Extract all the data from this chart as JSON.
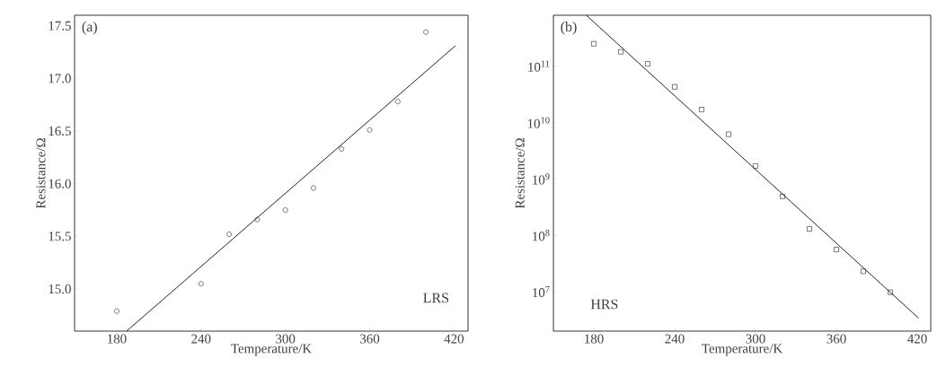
{
  "chart_data": [
    {
      "type": "scatter",
      "xlabel": "Temperature/K",
      "ylabel": "Resistance/Ω",
      "annotations": [
        "(a)",
        "LRS"
      ],
      "xlim": [
        150,
        430
      ],
      "ylim": [
        14.6,
        17.6
      ],
      "xticks": [
        180,
        240,
        300,
        360,
        420
      ],
      "yticks": [
        {
          "value": 15,
          "label": "15.0"
        },
        15.5,
        {
          "value": 16,
          "label": "16.0"
        },
        16.5,
        {
          "value": 17,
          "label": "17.0"
        },
        17.5
      ],
      "series": [
        {
          "color": "#222222",
          "marker": "circle",
          "x": [
            180,
            240,
            260,
            280,
            300,
            320,
            340,
            360,
            380,
            400
          ],
          "values": [
            14.79,
            15.05,
            15.52,
            15.66,
            15.75,
            15.96,
            16.33,
            16.51,
            16.78,
            17.44
          ]
        },
        {
          "type": "line",
          "color": "#222222",
          "line_style": "solid",
          "x": [
            187,
            421
          ],
          "values": [
            14.6,
            17.31
          ]
        }
      ]
    },
    {
      "type": "scatter",
      "xlabel": "Temperature/K",
      "ylabel": "Resistance/Ω",
      "annotations": [
        "(b)",
        "HRS"
      ],
      "log": true,
      "xlim": [
        150,
        430
      ],
      "ylim": [
        2000000,
        800000000000
      ],
      "xticks": [
        180,
        240,
        300,
        360,
        420
      ],
      "yticks": [
        {
          "value": 10000000,
          "label": "10$^{7}$"
        },
        {
          "value": 100000000,
          "label": "10$^{8}$"
        },
        {
          "value": 1000000000,
          "label": "10$^{9}$"
        },
        {
          "value": 10000000000,
          "label": "10$^{10}$"
        },
        {
          "value": 100000000000,
          "label": "10$^{11}$"
        }
      ],
      "series": [
        {
          "color": "#222222",
          "marker": "square",
          "x": [
            180,
            200,
            220,
            240,
            260,
            280,
            300,
            320,
            340,
            360,
            380,
            400
          ],
          "values": [
            250000000000,
            180000000000,
            110000000000,
            43000000000,
            17000000000,
            6200000000,
            1700000000,
            490000000,
            130000000,
            56000000,
            23000000,
            9800000
          ]
        },
        {
          "type": "line",
          "color": "#222222",
          "line_style": "solid",
          "x": [
            174.4,
            421
          ],
          "values": [
            800000000000,
            3400000
          ]
        }
      ]
    }
  ]
}
